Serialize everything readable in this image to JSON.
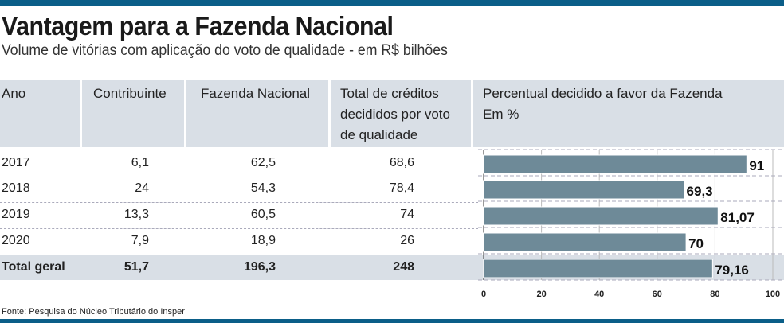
{
  "title": "Vantagem para a Fazenda Nacional",
  "subtitle": "Volume de vitórias com aplicação do voto de qualidade - em R$ bilhões",
  "headers": [
    "Ano",
    "Contribuinte",
    "Fazenda Nacional",
    "Total de créditos decididos por voto de qualidade",
    "Percentual decidido a favor da Fazenda Em %"
  ],
  "rows": [
    {
      "ano": "2017",
      "contribuinte": "6,1",
      "fazenda": "62,5",
      "total": "68,6",
      "pct": "91"
    },
    {
      "ano": "2018",
      "contribuinte": "24",
      "fazenda": "54,3",
      "total": "78,4",
      "pct": "69,3"
    },
    {
      "ano": "2019",
      "contribuinte": "13,3",
      "fazenda": "60,5",
      "total": "74",
      "pct": "81,07"
    },
    {
      "ano": "2020",
      "contribuinte": "7,9",
      "fazenda": "18,9",
      "total": "26",
      "pct": "70"
    },
    {
      "ano": "Total geral",
      "contribuinte": "51,7",
      "fazenda": "196,3",
      "total": "248",
      "pct": "79,16"
    }
  ],
  "footer": "Fonte: Pesquisa do Núcleo Tributário do Insper",
  "colors": {
    "bar": "#6e8a98",
    "header_bg": "#d9dfe6",
    "accent": "#0b5e88"
  },
  "chart_data": {
    "type": "bar",
    "orientation": "horizontal",
    "categories": [
      "2017",
      "2018",
      "2019",
      "2020",
      "Total geral"
    ],
    "values": [
      91,
      69.3,
      81.07,
      70,
      79.16
    ],
    "labels": [
      "91",
      "69,3",
      "81,07",
      "70",
      "79,16"
    ],
    "title": "Percentual decidido a favor da Fazenda",
    "xlabel": "Em %",
    "xlim": [
      0,
      100
    ],
    "ticks": [
      "0",
      "20",
      "40",
      "60",
      "80",
      "100"
    ],
    "grid": true
  }
}
